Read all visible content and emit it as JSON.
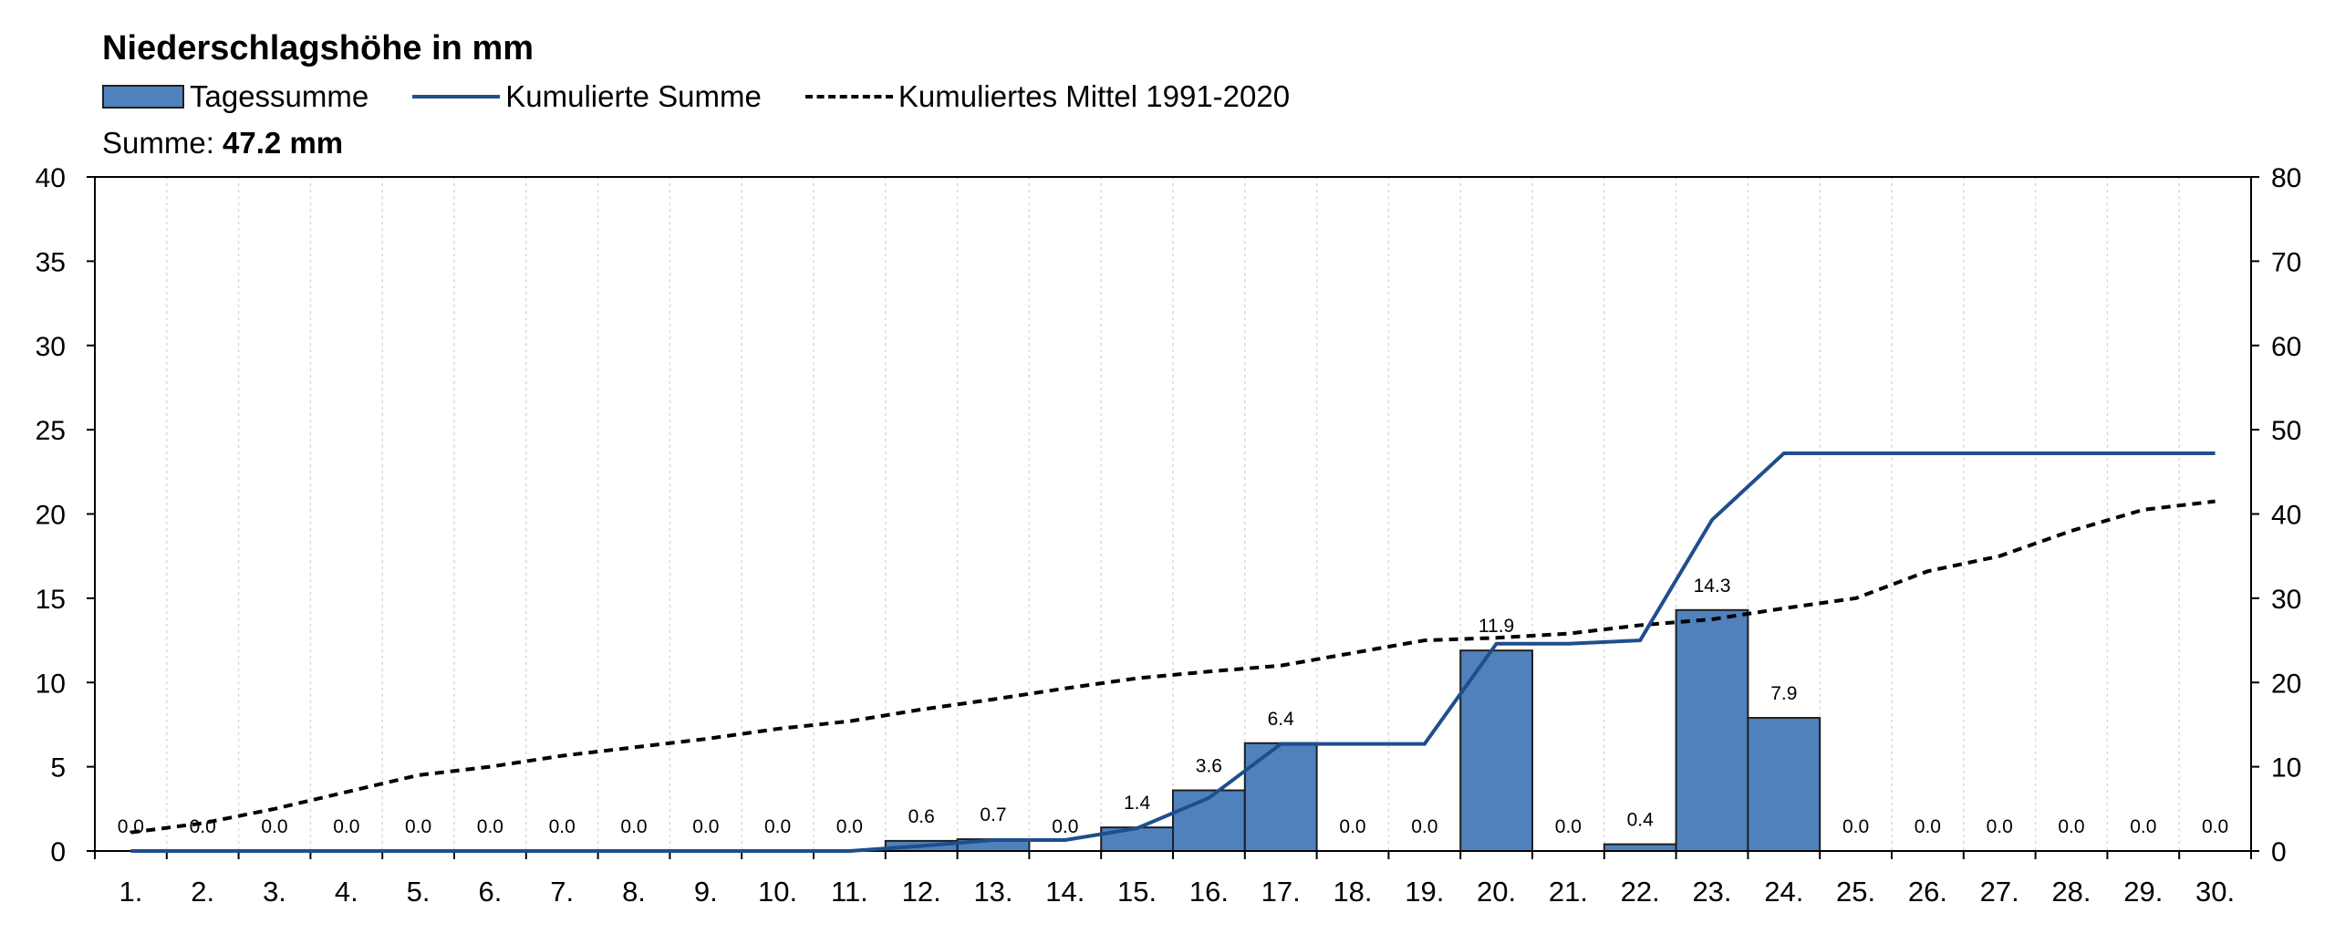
{
  "title": "Niederschlagshöhe in mm",
  "legend": {
    "bars": "Tagessumme",
    "cumulative": "Kumulierte Summe",
    "mean": "Kumuliertes Mittel 1991-2020"
  },
  "summary": {
    "label": "Summe:",
    "value": "47.2 mm"
  },
  "colors": {
    "bar": "#4f81bd",
    "bar_edge": "#1f1f1f",
    "cumulative": "#1f4e8c",
    "mean": "#000000"
  },
  "chart_data": {
    "type": "bar",
    "categories": [
      "1.",
      "2.",
      "3.",
      "4.",
      "5.",
      "6.",
      "7.",
      "8.",
      "9.",
      "10.",
      "11.",
      "12.",
      "13.",
      "14.",
      "15.",
      "16.",
      "17.",
      "18.",
      "19.",
      "20.",
      "21.",
      "22.",
      "23.",
      "24.",
      "25.",
      "26.",
      "27.",
      "28.",
      "29.",
      "30."
    ],
    "series": [
      {
        "name": "Tagessumme",
        "type": "bar",
        "axis": "left",
        "values": [
          0.0,
          0.0,
          0.0,
          0.0,
          0.0,
          0.0,
          0.0,
          0.0,
          0.0,
          0.0,
          0.0,
          0.6,
          0.7,
          0.0,
          1.4,
          3.6,
          6.4,
          0.0,
          0.0,
          11.9,
          0.0,
          0.4,
          14.3,
          7.9,
          0.0,
          0.0,
          0.0,
          0.0,
          0.0,
          0.0
        ],
        "labels": [
          "0.0",
          "0.0",
          "0.0",
          "0.0",
          "0.0",
          "0.0",
          "0.0",
          "0.0",
          "0.0",
          "0.0",
          "0.0",
          "0.6",
          "0.7",
          "0.0",
          "1.4",
          "3.6",
          "6.4",
          "0.0",
          "0.0",
          "11.9",
          "0.0",
          "0.4",
          "14.3",
          "7.9",
          "0.0",
          "0.0",
          "0.0",
          "0.0",
          "0.0",
          "0.0"
        ]
      },
      {
        "name": "Kumulierte Summe",
        "type": "line",
        "axis": "right",
        "values": [
          0,
          0,
          0,
          0,
          0,
          0,
          0,
          0,
          0,
          0,
          0,
          0.6,
          1.3,
          1.3,
          2.7,
          6.3,
          12.7,
          12.7,
          12.7,
          24.6,
          24.6,
          25.0,
          39.3,
          47.2,
          47.2,
          47.2,
          47.2,
          47.2,
          47.2,
          47.2
        ]
      },
      {
        "name": "Kumuliertes Mittel 1991-2020",
        "type": "line",
        "style": "dashed",
        "axis": "right",
        "values": [
          2.2,
          3.3,
          5.0,
          7.0,
          9.0,
          10.0,
          11.3,
          12.3,
          13.3,
          14.5,
          15.4,
          16.8,
          18.0,
          19.3,
          20.5,
          21.3,
          22.0,
          23.5,
          25.0,
          25.3,
          25.8,
          26.8,
          27.5,
          28.8,
          30.0,
          33.2,
          35.0,
          38.0,
          40.5,
          41.5
        ]
      }
    ],
    "ylim_left": [
      0,
      40
    ],
    "yticks_left": [
      0,
      5,
      10,
      15,
      20,
      25,
      30,
      35,
      40
    ],
    "ylim_right": [
      0,
      80
    ],
    "yticks_right": [
      0,
      10,
      20,
      30,
      40,
      50,
      60,
      70,
      80
    ],
    "grid": "vertical dotted",
    "legend_position": "top-left"
  }
}
